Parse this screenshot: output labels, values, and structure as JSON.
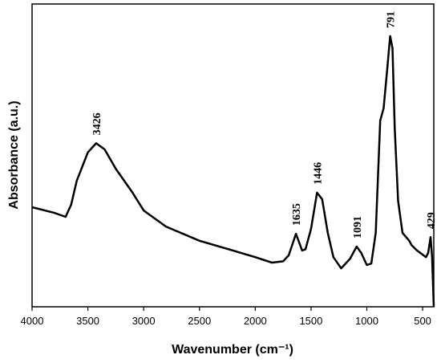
{
  "chart_data": {
    "type": "line",
    "xlabel": "Wavenumber (cm⁻¹)",
    "ylabel": "Absorbance (a.u.)",
    "xlim": [
      4000,
      400
    ],
    "xticks": [
      4000,
      3500,
      3000,
      2500,
      2000,
      1500,
      1000,
      500
    ],
    "ylim": [
      0,
      100
    ],
    "color": "#000000",
    "x": [
      4000,
      3800,
      3700,
      3650,
      3600,
      3500,
      3426,
      3350,
      3250,
      3100,
      3000,
      2800,
      2500,
      2200,
      2000,
      1850,
      1750,
      1700,
      1635,
      1580,
      1550,
      1500,
      1446,
      1400,
      1350,
      1300,
      1230,
      1150,
      1091,
      1050,
      1000,
      960,
      920,
      880,
      850,
      820,
      791,
      770,
      750,
      720,
      680,
      620,
      600,
      550,
      470,
      450,
      429,
      415,
      400
    ],
    "values": [
      32.9,
      31,
      29.7,
      33.7,
      41.6,
      51,
      54,
      52,
      45.6,
      37.7,
      31.8,
      26.5,
      21.8,
      18.6,
      16.4,
      14.6,
      15,
      17,
      24.1,
      18.6,
      19,
      25.7,
      37.7,
      35.5,
      24.4,
      16.4,
      12.7,
      15.9,
      19.9,
      17.8,
      13.8,
      14.3,
      24.4,
      61.5,
      65.5,
      77.5,
      89.4,
      85.4,
      58.9,
      35,
      24.4,
      21.8,
      20.4,
      18.6,
      16.4,
      17.8,
      23,
      16.4,
      0
    ],
    "annotations": [
      {
        "x": 3426,
        "label": "3426"
      },
      {
        "x": 1635,
        "label": "1635"
      },
      {
        "x": 1446,
        "label": "1446"
      },
      {
        "x": 1091,
        "label": "1091"
      },
      {
        "x": 791,
        "label": "791"
      },
      {
        "x": 429,
        "label": "429"
      }
    ]
  }
}
